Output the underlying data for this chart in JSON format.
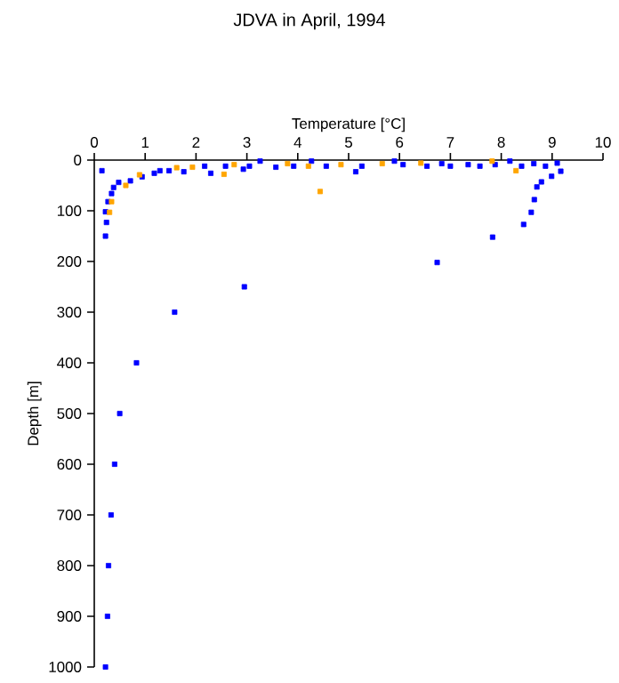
{
  "chart_data": {
    "type": "scatter",
    "title": "JDVA in April, 1994",
    "xlabel": "Temperature [°C]",
    "ylabel": "Depth [m]",
    "xlim": [
      0,
      10
    ],
    "ylim": [
      1000,
      0
    ],
    "xticks": [
      0,
      1,
      2,
      3,
      4,
      5,
      6,
      7,
      8,
      9,
      10
    ],
    "yticks": [
      0,
      100,
      200,
      300,
      400,
      500,
      600,
      700,
      800,
      900,
      1000
    ],
    "marker": "square",
    "series": [
      {
        "color": "#0000ff",
        "x": [
          0.15,
          0.24,
          0.22,
          0.27,
          0.34,
          0.38,
          0.48,
          0.71,
          0.94,
          1.18,
          1.29,
          1.47,
          1.76,
          2.17,
          2.29,
          2.58,
          2.93,
          3.05,
          3.26,
          3.57,
          3.92,
          4.27,
          4.56,
          5.14,
          5.26,
          5.9,
          6.07,
          6.54,
          6.83,
          7.0,
          7.35,
          7.58,
          7.88,
          8.17,
          8.4,
          8.64,
          8.87,
          9.1,
          9.17,
          8.99,
          8.79,
          8.7,
          8.65,
          8.59,
          8.44,
          7.83,
          6.74,
          0.22,
          2.95,
          1.58,
          0.83,
          0.5,
          0.4,
          0.33,
          0.28,
          0.26,
          0.22
        ],
        "values": [
          21,
          123,
          102,
          82,
          66,
          54,
          44,
          41,
          33,
          26,
          21,
          21,
          23,
          12,
          26,
          12,
          18,
          12,
          2,
          14,
          12,
          2,
          12,
          23,
          12,
          2,
          9,
          12,
          7,
          12,
          9,
          12,
          9,
          2,
          12,
          7,
          12,
          6,
          22,
          32,
          43,
          53,
          78,
          103,
          127,
          152,
          202,
          150,
          250,
          300,
          400,
          500,
          600,
          700,
          800,
          900,
          1000
        ]
      },
      {
        "color": "#ffa500",
        "x": [
          0.3,
          0.34,
          0.62,
          0.89,
          1.62,
          1.93,
          2.55,
          2.75,
          3.8,
          4.21,
          4.44,
          4.85,
          5.66,
          6.42,
          7.82,
          8.29
        ],
        "values": [
          103,
          82,
          50,
          29,
          15,
          14,
          28,
          9,
          7,
          12,
          62,
          9,
          7,
          6,
          2,
          21
        ]
      }
    ]
  }
}
